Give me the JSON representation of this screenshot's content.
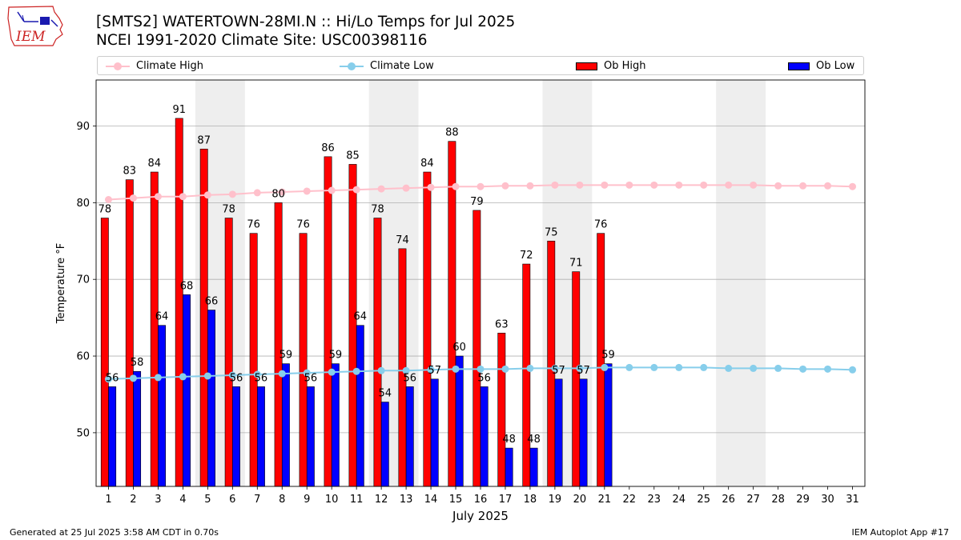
{
  "header": {
    "title_line1": "[SMTS2] WATERTOWN-28MI.N :: Hi/Lo Temps for Jul 2025",
    "title_line2": "NCEI 1991-2020 Climate Site: USC00398116"
  },
  "logo": {
    "text": "IEM",
    "color": "#cc2222"
  },
  "footer": {
    "left": "Generated at 25 Jul 2025 3:58 AM CDT in 0.70s",
    "right": "IEM Autoplot App #17"
  },
  "colors": {
    "ob_high": "#ff0000",
    "ob_low": "#0000ff",
    "climate_high": "#ffc0cb",
    "climate_low": "#87ceeb",
    "weekend_band": "#eeeeee",
    "grid": "#b0b0b0"
  },
  "legend": {
    "climate_high": "Climate High",
    "climate_low": "Climate Low",
    "ob_high": "Ob High",
    "ob_low": "Ob Low"
  },
  "chart_data": {
    "type": "bar",
    "title": "[SMTS2] WATERTOWN-28MI.N :: Hi/Lo Temps for Jul 2025",
    "xlabel": "July 2025",
    "ylabel": "Temperature °F",
    "ylim": [
      43,
      96
    ],
    "yticks": [
      50,
      60,
      70,
      80,
      90
    ],
    "grid": "horizontal",
    "legend_position": "top",
    "categories": [
      "1",
      "2",
      "3",
      "4",
      "5",
      "6",
      "7",
      "8",
      "9",
      "10",
      "11",
      "12",
      "13",
      "14",
      "15",
      "16",
      "17",
      "18",
      "19",
      "20",
      "21",
      "22",
      "23",
      "24",
      "25",
      "26",
      "27",
      "28",
      "29",
      "30",
      "31"
    ],
    "weekend_bands": [
      [
        5,
        6
      ],
      [
        12,
        13
      ],
      [
        19,
        20
      ],
      [
        26,
        27
      ]
    ],
    "series": [
      {
        "name": "Ob High",
        "type": "bar",
        "values": [
          78,
          83,
          84,
          91,
          87,
          78,
          76,
          80,
          76,
          86,
          85,
          78,
          74,
          84,
          88,
          79,
          63,
          72,
          75,
          71,
          76,
          null,
          null,
          null,
          null,
          null,
          null,
          null,
          null,
          null,
          null
        ]
      },
      {
        "name": "Ob Low",
        "type": "bar",
        "values": [
          56,
          58,
          64,
          68,
          66,
          56,
          56,
          59,
          56,
          59,
          64,
          54,
          56,
          57,
          60,
          56,
          48,
          48,
          57,
          57,
          59,
          null,
          null,
          null,
          null,
          null,
          null,
          null,
          null,
          null,
          null
        ]
      },
      {
        "name": "Climate High",
        "type": "line",
        "values": [
          80.4,
          80.6,
          80.8,
          80.8,
          81.0,
          81.1,
          81.3,
          81.4,
          81.5,
          81.6,
          81.7,
          81.8,
          81.9,
          82.0,
          82.1,
          82.1,
          82.2,
          82.2,
          82.3,
          82.3,
          82.3,
          82.3,
          82.3,
          82.3,
          82.3,
          82.3,
          82.3,
          82.2,
          82.2,
          82.2,
          82.1
        ]
      },
      {
        "name": "Climate Low",
        "type": "line",
        "values": [
          57.0,
          57.1,
          57.2,
          57.3,
          57.4,
          57.5,
          57.6,
          57.7,
          57.8,
          57.9,
          58.0,
          58.1,
          58.1,
          58.2,
          58.3,
          58.3,
          58.3,
          58.4,
          58.4,
          58.4,
          58.5,
          58.5,
          58.5,
          58.5,
          58.5,
          58.4,
          58.4,
          58.4,
          58.3,
          58.3,
          58.2
        ]
      }
    ]
  }
}
